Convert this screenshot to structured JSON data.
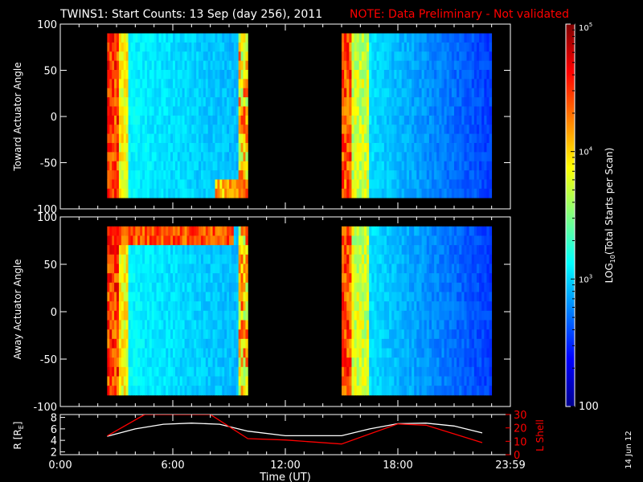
{
  "header": {
    "title": "TWINS1: Start Counts: 13 Sep (day 256), 2011",
    "note": "NOTE: Data Preliminary - Not validated",
    "note_color": "#ff0000"
  },
  "side_date": "14 Jun 12",
  "colorbar": {
    "label": "LOG10(Total Starts per Scan)",
    "label_main": "LOG",
    "label_sub": "10",
    "label_tail": "(Total Starts per Scan)",
    "tick_labels": [
      "100",
      "10",
      "10",
      "10"
    ],
    "tick_exponents": [
      "",
      "3",
      "4",
      "5"
    ],
    "range": [
      100,
      100000
    ],
    "scale": "log",
    "colormap": [
      "#00008f",
      "#0000ff",
      "#0080ff",
      "#00ffff",
      "#80ff80",
      "#ffff00",
      "#ff8000",
      "#ff0000",
      "#800000"
    ]
  },
  "x_axis": {
    "label": "Time (UT)",
    "tick_labels": [
      "0:00",
      "6:00",
      "12:00",
      "18:00",
      "23:59"
    ],
    "range_hours": [
      0,
      24
    ]
  },
  "chart_data": [
    {
      "type": "heatmap",
      "ylabel": "Toward Actuator Angle",
      "ylim": [
        -100,
        100
      ],
      "y_ticks": [
        "100",
        "50",
        "0",
        "-50",
        "-100"
      ],
      "y_tick_values": [
        100,
        50,
        0,
        -50,
        -100
      ],
      "data_y_range": [
        -88,
        90
      ],
      "segments": [
        {
          "start_hour": 2.5,
          "end_hour": 10.0
        },
        {
          "start_hour": 15.0,
          "end_hour": 23.0
        }
      ]
    },
    {
      "type": "heatmap",
      "ylabel": "Away Actuator Angle",
      "ylim": [
        -100,
        100
      ],
      "y_ticks": [
        "100",
        "50",
        "0",
        "-50",
        "-100"
      ],
      "y_tick_values": [
        100,
        50,
        0,
        -50,
        -100
      ],
      "data_y_range": [
        -88,
        90
      ],
      "segments": [
        {
          "start_hour": 2.5,
          "end_hour": 10.0
        },
        {
          "start_hour": 15.0,
          "end_hour": 23.0
        }
      ]
    },
    {
      "type": "line",
      "ylabel_left": "R [R",
      "ylabel_left_sub": "E",
      "ylabel_left_tail": "]",
      "ylabel_right": "L Shell",
      "left_ticks": [
        "8",
        "6",
        "4",
        "2"
      ],
      "left_tick_values": [
        8,
        6,
        4,
        2
      ],
      "left_ylim": [
        1.5,
        8.5
      ],
      "right_ticks": [
        "30",
        "20",
        "10",
        "0"
      ],
      "right_tick_values": [
        30,
        20,
        10,
        0
      ],
      "right_ylim": [
        0,
        30
      ],
      "right_color": "#ff0000",
      "series": [
        {
          "name": "R [RE]",
          "color": "#ffffff",
          "axis": "left",
          "x": [
            2.5,
            4.0,
            5.5,
            7.0,
            8.5,
            10.0,
            12.0,
            14.0,
            15.0,
            16.5,
            18.0,
            19.5,
            21.0,
            22.5
          ],
          "y": [
            4.7,
            6.0,
            6.8,
            7.0,
            6.8,
            5.6,
            4.8,
            4.8,
            4.8,
            6.0,
            6.9,
            7.0,
            6.5,
            5.3
          ]
        },
        {
          "name": "L Shell",
          "color": "#ff0000",
          "axis": "right",
          "x": [
            2.5,
            4.5,
            8.0,
            10.0,
            12.0,
            15.0,
            18.0,
            19.5,
            22.5
          ],
          "y": [
            14.0,
            30.0,
            30.0,
            12.0,
            11.0,
            8.0,
            23.0,
            22.0,
            9.0
          ]
        }
      ]
    }
  ]
}
